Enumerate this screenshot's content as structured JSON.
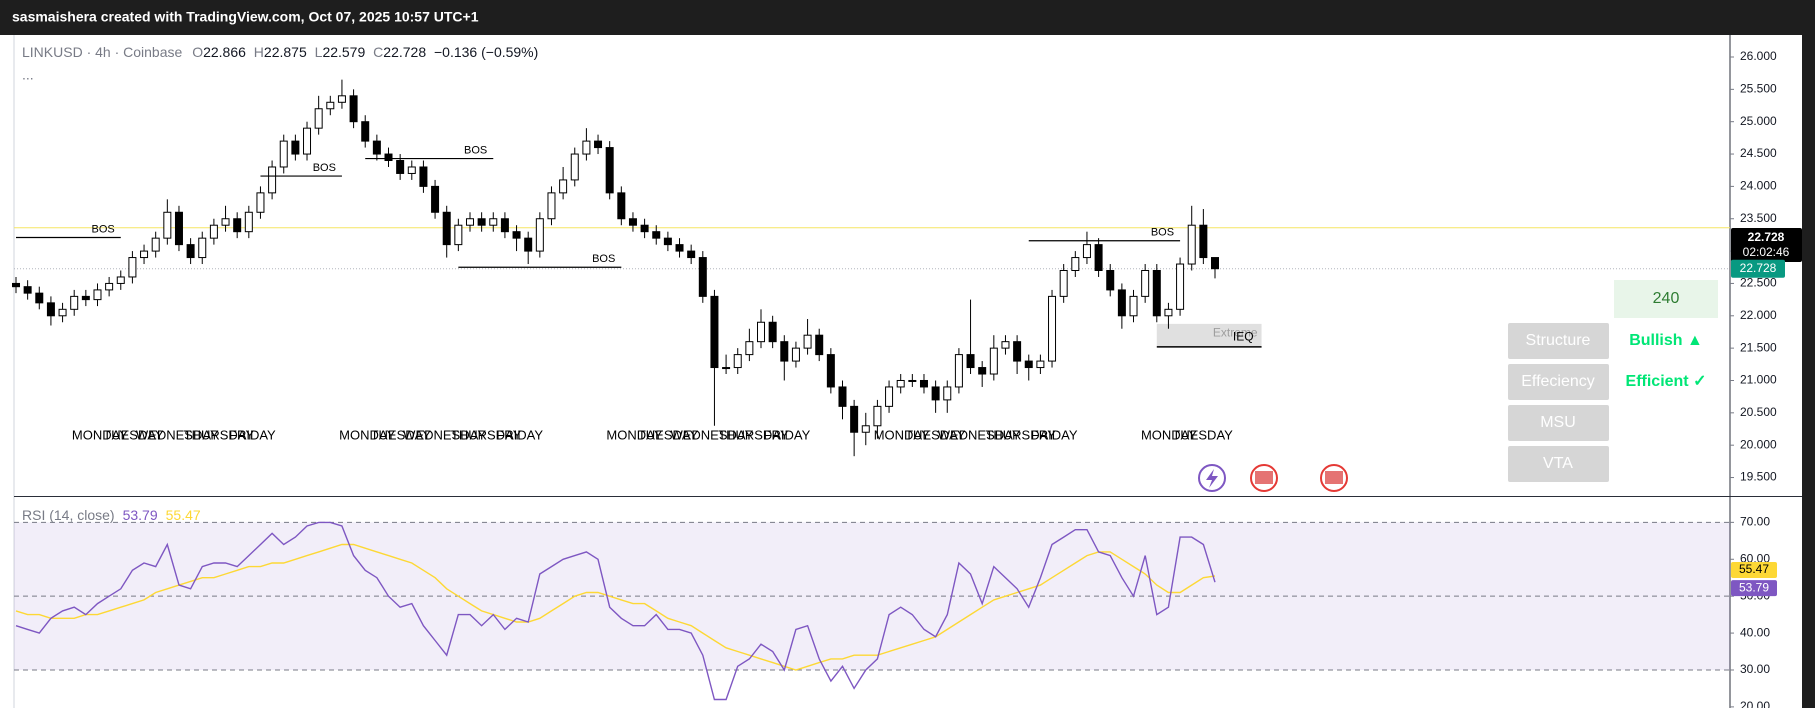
{
  "header": {
    "text": "sasmaishera created with TradingView.com, Oct 07, 2025 10:57 UTC+1"
  },
  "legend": {
    "symbol": "LINKUSD · 4h · Coinbase",
    "o_label": "O",
    "open": "22.866",
    "h_label": "H",
    "high": "22.875",
    "l_label": "L",
    "low": "22.579",
    "c_label": "C",
    "close": "22.728",
    "change": "−0.136 (−0.59%)",
    "more": "..."
  },
  "panel": {
    "timeframe": "240",
    "labels": [
      "Structure",
      "Effeciency",
      "MSU",
      "VTA"
    ],
    "states": [
      "Bullish ▲",
      "Efficient ✓"
    ]
  },
  "chart_data": [
    {
      "type": "candlestick",
      "open": [
        22.5,
        22.45,
        22.35,
        22.2,
        22.0,
        22.1,
        22.3,
        22.25,
        22.4,
        22.5,
        22.6,
        22.9,
        23.0,
        23.2,
        23.6,
        23.1,
        22.9,
        23.2,
        23.4,
        23.5,
        23.3,
        23.6,
        23.9,
        24.3,
        24.7,
        24.5,
        24.9,
        25.2,
        25.3,
        25.4,
        25.0,
        24.7,
        24.5,
        24.4,
        24.2,
        24.3,
        24.0,
        23.6,
        23.1,
        23.4,
        23.5,
        23.4,
        23.5,
        23.3,
        23.2,
        23.0,
        23.5,
        23.9,
        24.1,
        24.5,
        24.7,
        24.6,
        23.9,
        23.5,
        23.4,
        23.3,
        23.2,
        23.1,
        23.0,
        22.9,
        22.3,
        21.2,
        21.2,
        21.4,
        21.6,
        21.9,
        21.6,
        21.3,
        21.5,
        21.7,
        21.4,
        20.9,
        20.6,
        20.2,
        20.3,
        20.6,
        20.9,
        21.0,
        21.0,
        20.9,
        20.7,
        20.9,
        21.4,
        21.2,
        21.1,
        21.5,
        21.6,
        21.3,
        21.2,
        21.3,
        22.3,
        22.7,
        22.9,
        23.1,
        22.7,
        22.4,
        22.0,
        22.3,
        22.7,
        22.0,
        22.1,
        22.8,
        23.4,
        22.9
      ],
      "high": [
        22.6,
        22.55,
        22.45,
        22.3,
        22.2,
        22.4,
        22.4,
        22.5,
        22.6,
        22.7,
        23.0,
        23.1,
        23.3,
        23.8,
        23.7,
        23.2,
        23.3,
        23.5,
        23.7,
        23.6,
        23.7,
        24.0,
        24.4,
        24.8,
        24.8,
        25.0,
        25.4,
        25.4,
        25.65,
        25.5,
        25.1,
        24.8,
        24.6,
        24.5,
        24.4,
        24.4,
        24.1,
        23.7,
        23.5,
        23.6,
        23.6,
        23.6,
        23.6,
        23.4,
        23.3,
        23.6,
        24.0,
        24.3,
        24.6,
        24.9,
        24.8,
        24.7,
        24.0,
        23.6,
        23.5,
        23.4,
        23.3,
        23.2,
        23.1,
        23.0,
        22.4,
        21.4,
        21.5,
        21.8,
        22.1,
        22.0,
        21.7,
        21.6,
        21.95,
        21.8,
        21.5,
        21.0,
        20.7,
        20.5,
        20.7,
        21.0,
        21.1,
        21.1,
        21.1,
        21.0,
        21.0,
        21.5,
        22.25,
        21.3,
        21.7,
        21.7,
        21.7,
        21.4,
        21.4,
        22.4,
        22.8,
        23.0,
        23.3,
        23.2,
        22.8,
        22.5,
        22.4,
        22.8,
        22.8,
        22.2,
        22.9,
        23.7,
        23.65,
        22.875
      ],
      "low": [
        22.35,
        22.25,
        22.1,
        21.85,
        21.9,
        22.0,
        22.15,
        22.15,
        22.3,
        22.4,
        22.5,
        22.8,
        22.9,
        23.1,
        23.0,
        22.8,
        22.8,
        23.1,
        23.3,
        23.2,
        23.2,
        23.5,
        23.8,
        24.2,
        24.4,
        24.4,
        24.8,
        25.1,
        25.2,
        24.9,
        24.6,
        24.4,
        24.3,
        24.1,
        24.1,
        23.9,
        23.5,
        22.9,
        23.0,
        23.3,
        23.3,
        23.3,
        23.2,
        23.0,
        22.8,
        22.9,
        23.4,
        23.8,
        24.0,
        24.4,
        24.5,
        23.8,
        23.4,
        23.3,
        23.2,
        23.1,
        23.0,
        22.9,
        22.8,
        22.2,
        20.3,
        21.1,
        21.1,
        21.3,
        21.5,
        21.5,
        21.0,
        21.2,
        21.4,
        21.3,
        20.8,
        20.4,
        19.83,
        20.0,
        20.1,
        20.5,
        20.8,
        20.9,
        20.8,
        20.5,
        20.5,
        20.8,
        21.1,
        20.9,
        21.0,
        21.4,
        21.1,
        21.0,
        21.1,
        21.2,
        22.2,
        22.6,
        22.8,
        22.6,
        22.3,
        21.8,
        21.9,
        22.2,
        21.9,
        21.8,
        22.0,
        22.7,
        22.8,
        22.579
      ],
      "close": [
        22.45,
        22.35,
        22.2,
        22.0,
        22.1,
        22.3,
        22.25,
        22.4,
        22.5,
        22.6,
        22.9,
        23.0,
        23.2,
        23.6,
        23.1,
        22.9,
        23.2,
        23.4,
        23.5,
        23.3,
        23.6,
        23.9,
        24.3,
        24.7,
        24.5,
        24.9,
        25.2,
        25.3,
        25.4,
        25.0,
        24.7,
        24.5,
        24.4,
        24.2,
        24.3,
        24.0,
        23.6,
        23.1,
        23.4,
        23.5,
        23.4,
        23.5,
        23.3,
        23.2,
        23.0,
        23.5,
        23.9,
        24.1,
        24.5,
        24.7,
        24.6,
        23.9,
        23.5,
        23.4,
        23.3,
        23.2,
        23.1,
        23.0,
        22.9,
        22.3,
        21.2,
        21.2,
        21.4,
        21.6,
        21.9,
        21.6,
        21.3,
        21.5,
        21.7,
        21.4,
        20.9,
        20.6,
        20.2,
        20.3,
        20.6,
        20.9,
        21.0,
        21.0,
        20.9,
        20.7,
        20.9,
        21.4,
        21.2,
        21.1,
        21.5,
        21.6,
        21.3,
        21.2,
        21.3,
        22.3,
        22.7,
        22.9,
        23.1,
        22.7,
        22.4,
        22.0,
        22.3,
        22.7,
        22.0,
        22.1,
        22.8,
        23.4,
        22.9,
        22.728
      ],
      "value_labels": {
        "last": "22.728"
      },
      "countdown": "02:02:46",
      "up_color": "#ffffff",
      "down_color": "#000000",
      "level": {
        "value": 23.36,
        "color": "#f5e663"
      },
      "ylim": [
        19.23,
        26.34
      ],
      "yticks": [
        {
          "value": 19.5,
          "label": "19.500"
        },
        {
          "value": 20,
          "label": "20.000"
        },
        {
          "value": 20.5,
          "label": "20.500"
        },
        {
          "value": 21,
          "label": "21.000"
        },
        {
          "value": 21.5,
          "label": "21.500"
        },
        {
          "value": 22,
          "label": "22.000"
        },
        {
          "value": 22.5,
          "label": "22.500"
        },
        {
          "value": 23,
          "label": "23.000"
        },
        {
          "value": 23.5,
          "label": "23.500"
        },
        {
          "value": 24,
          "label": "24.000"
        },
        {
          "value": 24.5,
          "label": "24.500"
        },
        {
          "value": 25,
          "label": "25.000"
        },
        {
          "value": 25.5,
          "label": "25.500"
        },
        {
          "value": 26,
          "label": "26.000"
        }
      ],
      "grid": false,
      "bos": [
        {
          "label": "BOS",
          "price": 23.21,
          "from": 0,
          "to": 9
        },
        {
          "label": "BOS",
          "price": 24.16,
          "from": 21,
          "to": 28
        },
        {
          "label": "BOS",
          "price": 24.43,
          "from": 30,
          "to": 41
        },
        {
          "label": "BOS",
          "price": 22.75,
          "from": 38,
          "to": 52
        },
        {
          "label": "BOS",
          "price": 23.16,
          "from": 87,
          "to": 100
        }
      ],
      "zone": {
        "label": "Extreme",
        "tag": "IEQ",
        "top": 21.875,
        "bottom": 21.52,
        "from": 98,
        "to": 107
      },
      "day_labels": [
        [
          "MONDAY",
          "TUESDAY",
          "WEDNESDAY",
          "THURSDAY",
          "FRIDAY"
        ],
        [
          "MONDAY",
          "TUESDAY",
          "WEDNESDAY",
          "THURSDAY",
          "FRIDAY"
        ],
        [
          "MONDAY",
          "TUESDAY",
          "WEDNESDAY",
          "THURSDAY",
          "FRIDAY"
        ],
        [
          "MONDAY",
          "TUESDAY",
          "WEDNESDAY",
          "THURSDAY",
          "FRIDAY"
        ],
        [
          "MONDAY",
          "TUESDAY"
        ]
      ]
    },
    {
      "type": "line",
      "title": "RSI (14, close)",
      "series": [
        {
          "color": "#7e57c2",
          "values": [
            42,
            41,
            40,
            44,
            46,
            47,
            45,
            48,
            50,
            52,
            57,
            59,
            58,
            64,
            53,
            52,
            58,
            59,
            59,
            58,
            61,
            64,
            67,
            64,
            66,
            69,
            70,
            70,
            69,
            61,
            57,
            55,
            50,
            47,
            48,
            42,
            38,
            34,
            45,
            45,
            42,
            45,
            41,
            44,
            43,
            56,
            58,
            60,
            61,
            62,
            60,
            47,
            44,
            42,
            42,
            45,
            41,
            41,
            40,
            34,
            22,
            22,
            31,
            33,
            37,
            35,
            30,
            41,
            42,
            33,
            27,
            31,
            25,
            30,
            33,
            45,
            47,
            45,
            41,
            39,
            45,
            59,
            56,
            48,
            58,
            55,
            52,
            47,
            55,
            64,
            66,
            68,
            68,
            62,
            61,
            55,
            50,
            61,
            45,
            47,
            66,
            66,
            64,
            53.79
          ]
        },
        {
          "color": "#fdd835",
          "values": [
            46,
            45,
            45,
            44,
            44,
            44,
            45,
            45,
            46,
            47,
            48,
            49,
            51,
            52,
            53,
            54,
            55,
            55,
            56,
            57,
            58,
            58,
            59,
            59,
            60,
            61,
            62,
            63,
            64,
            64,
            63,
            62,
            61,
            60,
            59,
            57,
            55,
            52,
            50,
            48,
            46,
            45,
            44,
            43,
            43,
            44,
            46,
            48,
            50,
            51,
            51,
            50,
            49,
            48,
            48,
            46,
            44,
            43,
            42,
            40,
            38,
            36,
            35,
            34,
            33,
            32,
            31,
            30,
            31,
            32,
            33,
            33,
            34,
            34,
            34,
            35,
            36,
            37,
            38,
            39,
            41,
            43,
            45,
            47,
            49,
            50,
            51,
            52,
            53,
            55,
            57,
            59,
            61,
            62,
            62,
            60,
            58,
            56,
            53,
            51,
            51,
            53,
            55,
            55.47
          ]
        }
      ],
      "levels": [
        70,
        50,
        30
      ],
      "band_color": "#7e57c2",
      "ylim": [
        19.7,
        76.6
      ],
      "yticks": [
        {
          "value": 20,
          "label": "20.00"
        },
        {
          "value": 30,
          "label": "30.00"
        },
        {
          "value": 40,
          "label": "40.00"
        },
        {
          "value": 50,
          "label": "50.00"
        },
        {
          "value": 60,
          "label": "60.00"
        },
        {
          "value": 70,
          "label": "70.00"
        }
      ],
      "grid": false
    }
  ]
}
